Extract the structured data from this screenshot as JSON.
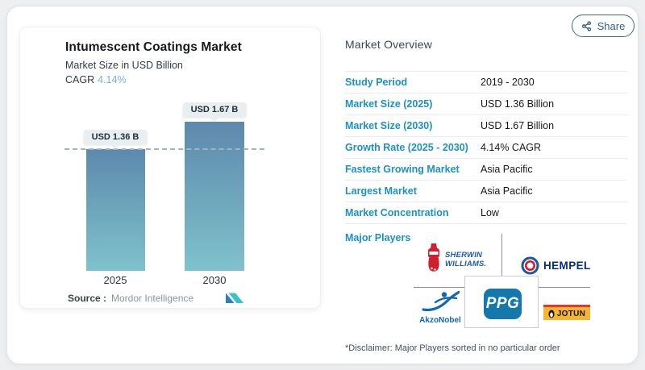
{
  "share": {
    "label": "Share"
  },
  "chart_panel": {
    "title": "Intumescent Coatings Market",
    "subtitle": "Market Size in USD Billion",
    "cagr_label": "CAGR",
    "cagr_value": "4.14%",
    "source_label": "Source :",
    "source_value": "Mordor Intelligence"
  },
  "chart_data": {
    "type": "bar",
    "title": "Intumescent Coatings Market",
    "ylabel": "Market Size in USD Billion",
    "categories": [
      "2025",
      "2030"
    ],
    "values": [
      1.36,
      1.67
    ],
    "value_labels": [
      "USD 1.36 B",
      "USD 1.67 B"
    ],
    "baseline_at_first_value": true,
    "bar_gradient": [
      "#5d89ac",
      "#7fc2cc"
    ],
    "grid": "off",
    "legend": "none"
  },
  "overview": {
    "heading": "Market Overview",
    "rows": [
      {
        "label": "Study Period",
        "value": "2019 - 2030"
      },
      {
        "label": "Market Size (2025)",
        "value": "USD 1.36 Billion"
      },
      {
        "label": "Market Size (2030)",
        "value": "USD 1.67 Billion"
      },
      {
        "label": "Growth Rate (2025 - 2030)",
        "value": "4.14% CAGR"
      },
      {
        "label": "Fastest Growing Market",
        "value": "Asia Pacific"
      },
      {
        "label": "Largest Market",
        "value": "Asia Pacific"
      },
      {
        "label": "Market Concentration",
        "value": "Low"
      }
    ],
    "major_players_label": "Major Players",
    "players": [
      {
        "name": "Sherwin-Williams",
        "lines": [
          "SHERWIN",
          "WILLIAMS."
        ]
      },
      {
        "name": "Hempel",
        "text": "HEMPEL"
      },
      {
        "name": "AkzoNobel",
        "text": "AkzoNobel"
      },
      {
        "name": "PPG",
        "text": "PPG"
      },
      {
        "name": "Jotun",
        "text": "JOTUN"
      }
    ],
    "disclaimer": "*Disclaimer: Major Players sorted in no particular order"
  },
  "colors": {
    "accent_blue": "#1b91c8",
    "cagr_blue": "#76b1d6",
    "share_blue": "#325f8c",
    "dash_line": "#9fb4c4",
    "jotun_yellow": "#f5b52e",
    "ppg_blue": "#1478ad"
  }
}
